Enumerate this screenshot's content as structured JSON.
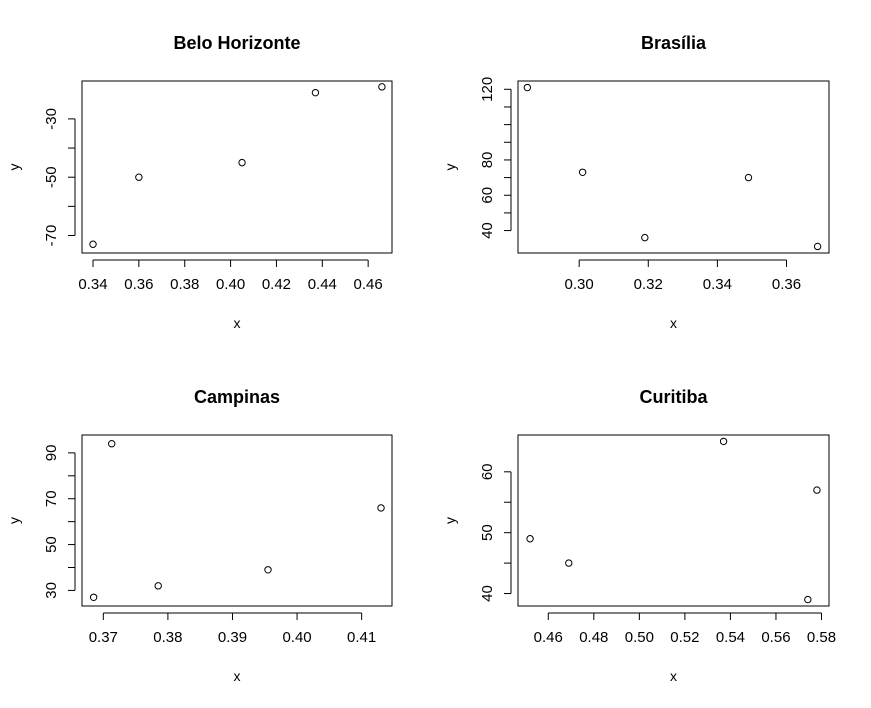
{
  "chart_data": [
    {
      "type": "scatter",
      "title": "Belo Horizonte",
      "xlabel": "x",
      "ylabel": "y",
      "xticks": [
        "0.34",
        "0.36",
        "0.38",
        "0.40",
        "0.42",
        "0.44",
        "0.46"
      ],
      "yticks": [
        "-70",
        "-50",
        "-30"
      ],
      "grid": false,
      "legend": "none",
      "x": [
        0.34,
        0.36,
        0.405,
        0.437,
        0.466
      ],
      "y": [
        -73,
        -50,
        -45,
        -21,
        -19
      ]
    },
    {
      "type": "scatter",
      "title": "Brasília",
      "xlabel": "x",
      "ylabel": "y",
      "xticks": [
        "0.30",
        "0.32",
        "0.34",
        "0.36"
      ],
      "yticks": [
        "40",
        "60",
        "80",
        "120"
      ],
      "grid": false,
      "legend": "none",
      "x": [
        0.285,
        0.301,
        0.319,
        0.349,
        0.369
      ],
      "y": [
        121,
        73,
        36,
        70,
        31
      ]
    },
    {
      "type": "scatter",
      "title": "Campinas",
      "xlabel": "x",
      "ylabel": "y",
      "xticks": [
        "0.37",
        "0.38",
        "0.39",
        "0.40",
        "0.41"
      ],
      "yticks": [
        "30",
        "50",
        "70",
        "90"
      ],
      "grid": false,
      "legend": "none",
      "x": [
        0.3685,
        0.3713,
        0.3785,
        0.3955,
        0.413
      ],
      "y": [
        27,
        94,
        32,
        39,
        66
      ]
    },
    {
      "type": "scatter",
      "title": "Curitiba",
      "xlabel": "x",
      "ylabel": "y",
      "xticks": [
        "0.46",
        "0.48",
        "0.50",
        "0.52",
        "0.54",
        "0.56",
        "0.58"
      ],
      "yticks": [
        "40",
        "50",
        "60"
      ],
      "grid": false,
      "legend": "none",
      "x": [
        0.452,
        0.469,
        0.537,
        0.574,
        0.578
      ],
      "y": [
        49,
        45,
        65,
        39,
        57
      ]
    }
  ]
}
